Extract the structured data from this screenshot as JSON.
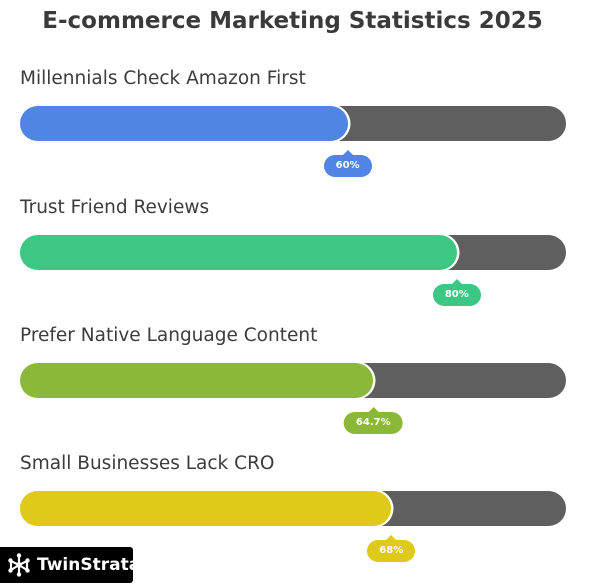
{
  "chart_data": {
    "type": "bar",
    "orientation": "horizontal",
    "title": "E-commerce Marketing Statistics 2025",
    "categories": [
      "Millennials Check Amazon First",
      "Trust Friend Reviews",
      "Prefer Native Language Content",
      "Small Businesses Lack CRO"
    ],
    "values": [
      60,
      80,
      64.7,
      68
    ],
    "value_labels": [
      "60%",
      "80%",
      "64.7%",
      "68%"
    ],
    "xlim": [
      0,
      100
    ],
    "colors": [
      "#4f86e6",
      "#3ec784",
      "#8cb83a",
      "#dfc919"
    ],
    "track_color": "#5f5f5f",
    "grid": false,
    "legend": "none"
  },
  "branding": {
    "name": "TwinStrata",
    "icon": "network-nodes-icon"
  }
}
